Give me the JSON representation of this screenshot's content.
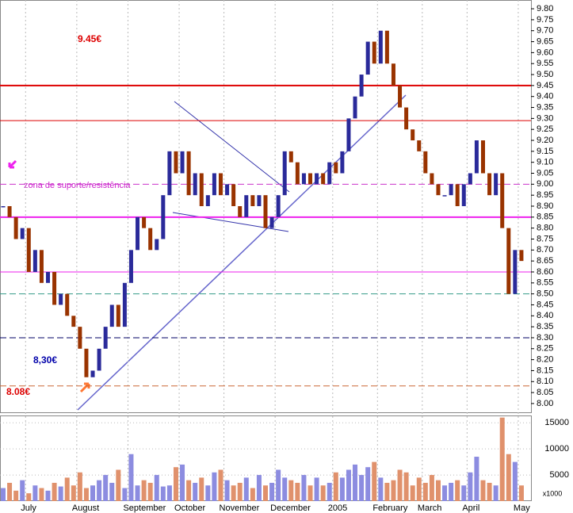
{
  "chart_data": {
    "type": "candlestick",
    "categories": [
      null,
      null,
      null,
      null,
      "July",
      null,
      null,
      null,
      null,
      null,
      null,
      null,
      "August",
      null,
      null,
      null,
      null,
      null,
      null,
      null,
      "September",
      null,
      null,
      null,
      null,
      null,
      null,
      null,
      "October",
      null,
      null,
      null,
      null,
      null,
      null,
      "November",
      null,
      null,
      null,
      null,
      null,
      null,
      null,
      "December",
      null,
      null,
      null,
      null,
      null,
      null,
      null,
      null,
      "2005",
      null,
      null,
      null,
      null,
      null,
      null,
      "February",
      null,
      null,
      null,
      null,
      null,
      null,
      "March",
      null,
      null,
      null,
      null,
      null,
      null,
      "April",
      null,
      null,
      null,
      null,
      null,
      null,
      null,
      "May"
    ],
    "series": [
      {
        "color_up": "#2a2a9a",
        "color_down": "#993300",
        "values": [
          8.9,
          8.85,
          8.75,
          8.8,
          8.6,
          8.7,
          8.55,
          8.6,
          8.45,
          8.5,
          8.4,
          8.35,
          8.25,
          8.12,
          8.15,
          8.25,
          8.35,
          8.45,
          8.35,
          8.55,
          8.7,
          8.85,
          8.8,
          8.7,
          8.75,
          8.95,
          9.15,
          9.05,
          9.15,
          8.95,
          9.05,
          8.9,
          8.95,
          9.05,
          8.95,
          9.0,
          8.9,
          8.85,
          8.95,
          8.9,
          8.95,
          8.8,
          8.85,
          8.95,
          9.15,
          9.1,
          9.0,
          9.05,
          9.0,
          9.05,
          9.0,
          9.1,
          9.05,
          9.15,
          9.3,
          9.4,
          9.5,
          9.65,
          9.55,
          9.7,
          9.55,
          9.45,
          9.35,
          9.25,
          9.2,
          9.15,
          9.05,
          9.0,
          8.95,
          8.95,
          9.0,
          8.9,
          9.0,
          9.05,
          9.2,
          9.05,
          8.95,
          9.05,
          8.8,
          8.5,
          8.7,
          8.65
        ]
      },
      {
        "color_up": "#8c8ce0",
        "color_down": "#e0916c",
        "axis": "y2",
        "values": [
          2500,
          3500,
          2000,
          4000,
          1500,
          3000,
          2500,
          2000,
          3500,
          2800,
          4500,
          3000,
          5500,
          2500,
          3000,
          4000,
          5000,
          3500,
          6000,
          2500,
          9000,
          3000,
          4000,
          3500,
          5000,
          2800,
          3000,
          6500,
          7000,
          4000,
          3500,
          4500,
          3000,
          5500,
          6000,
          4000,
          3000,
          3500,
          4500,
          2500,
          5000,
          3000,
          3500,
          6000,
          4500,
          4000,
          3500,
          5000,
          3000,
          4500,
          3000,
          3500,
          5500,
          4500,
          6000,
          7000,
          5000,
          6500,
          7500,
          4500,
          3500,
          4000,
          6000,
          5500,
          3000,
          4500,
          3500,
          5000,
          4000,
          3000,
          3500,
          4000,
          3000,
          5500,
          8500,
          4000,
          3500,
          3000,
          16000,
          9000,
          7500,
          3000
        ]
      }
    ],
    "ylim": [
      7.96,
      9.84
    ],
    "yticks": [
      {
        "value": 8.0,
        "label": "8.00"
      },
      {
        "value": 8.05,
        "label": "8.05"
      },
      {
        "value": 8.1,
        "label": "8.10"
      },
      {
        "value": 8.15,
        "label": "8.15"
      },
      {
        "value": 8.2,
        "label": "8.20"
      },
      {
        "value": 8.25,
        "label": "8.25"
      },
      {
        "value": 8.3,
        "label": "8.30"
      },
      {
        "value": 8.35,
        "label": "8.35"
      },
      {
        "value": 8.4,
        "label": "8.40"
      },
      {
        "value": 8.45,
        "label": "8.45"
      },
      {
        "value": 8.5,
        "label": "8.50"
      },
      {
        "value": 8.55,
        "label": "8.55"
      },
      {
        "value": 8.6,
        "label": "8.60"
      },
      {
        "value": 8.65,
        "label": "8.65"
      },
      {
        "value": 8.7,
        "label": "8.70"
      },
      {
        "value": 8.75,
        "label": "8.75"
      },
      {
        "value": 8.8,
        "label": "8.80"
      },
      {
        "value": 8.85,
        "label": "8.85"
      },
      {
        "value": 8.9,
        "label": "8.90"
      },
      {
        "value": 8.95,
        "label": "8.95"
      },
      {
        "value": 9.0,
        "label": "9.00"
      },
      {
        "value": 9.05,
        "label": "9.05"
      },
      {
        "value": 9.1,
        "label": "9.10"
      },
      {
        "value": 9.15,
        "label": "9.15"
      },
      {
        "value": 9.2,
        "label": "9.20"
      },
      {
        "value": 9.25,
        "label": "9.25"
      },
      {
        "value": 9.3,
        "label": "9.30"
      },
      {
        "value": 9.35,
        "label": "9.35"
      },
      {
        "value": 9.4,
        "label": "9.40"
      },
      {
        "value": 9.45,
        "label": "9.45"
      },
      {
        "value": 9.5,
        "label": "9.50"
      },
      {
        "value": 9.55,
        "label": "9.55"
      },
      {
        "value": 9.6,
        "label": "9.60"
      },
      {
        "value": 9.65,
        "label": "9.65"
      },
      {
        "value": 9.7,
        "label": "9.70"
      },
      {
        "value": 9.75,
        "label": "9.75"
      },
      {
        "value": 9.8,
        "label": "9.80"
      }
    ],
    "y2lim": [
      0,
      16400
    ],
    "y2ticks": [
      5000,
      10000,
      15000
    ],
    "y2_unit": "x1000",
    "levels": [
      {
        "value": 9.45,
        "color": "#dd0000",
        "width": 2,
        "dashed": false
      },
      {
        "value": 9.29,
        "color": "#dd0000",
        "width": 1,
        "dashed": false
      },
      {
        "value": 9.0,
        "color": "#cc33cc",
        "width": 1,
        "dashed": true
      },
      {
        "value": 8.85,
        "color": "#ee22ee",
        "width": 2,
        "dashed": false
      },
      {
        "value": 8.6,
        "color": "#ee22ee",
        "width": 1,
        "dashed": false
      },
      {
        "value": 8.5,
        "color": "#339988",
        "width": 1,
        "dashed": true
      },
      {
        "value": 8.3,
        "color": "#000066",
        "width": 1,
        "dashed": true
      },
      {
        "value": 8.08,
        "color": "#cc6633",
        "width": 1,
        "dashed": true
      }
    ],
    "annotations": [
      "9.45€",
      "8,30€",
      "8.08€",
      "zona de suporte/resistência"
    ]
  }
}
